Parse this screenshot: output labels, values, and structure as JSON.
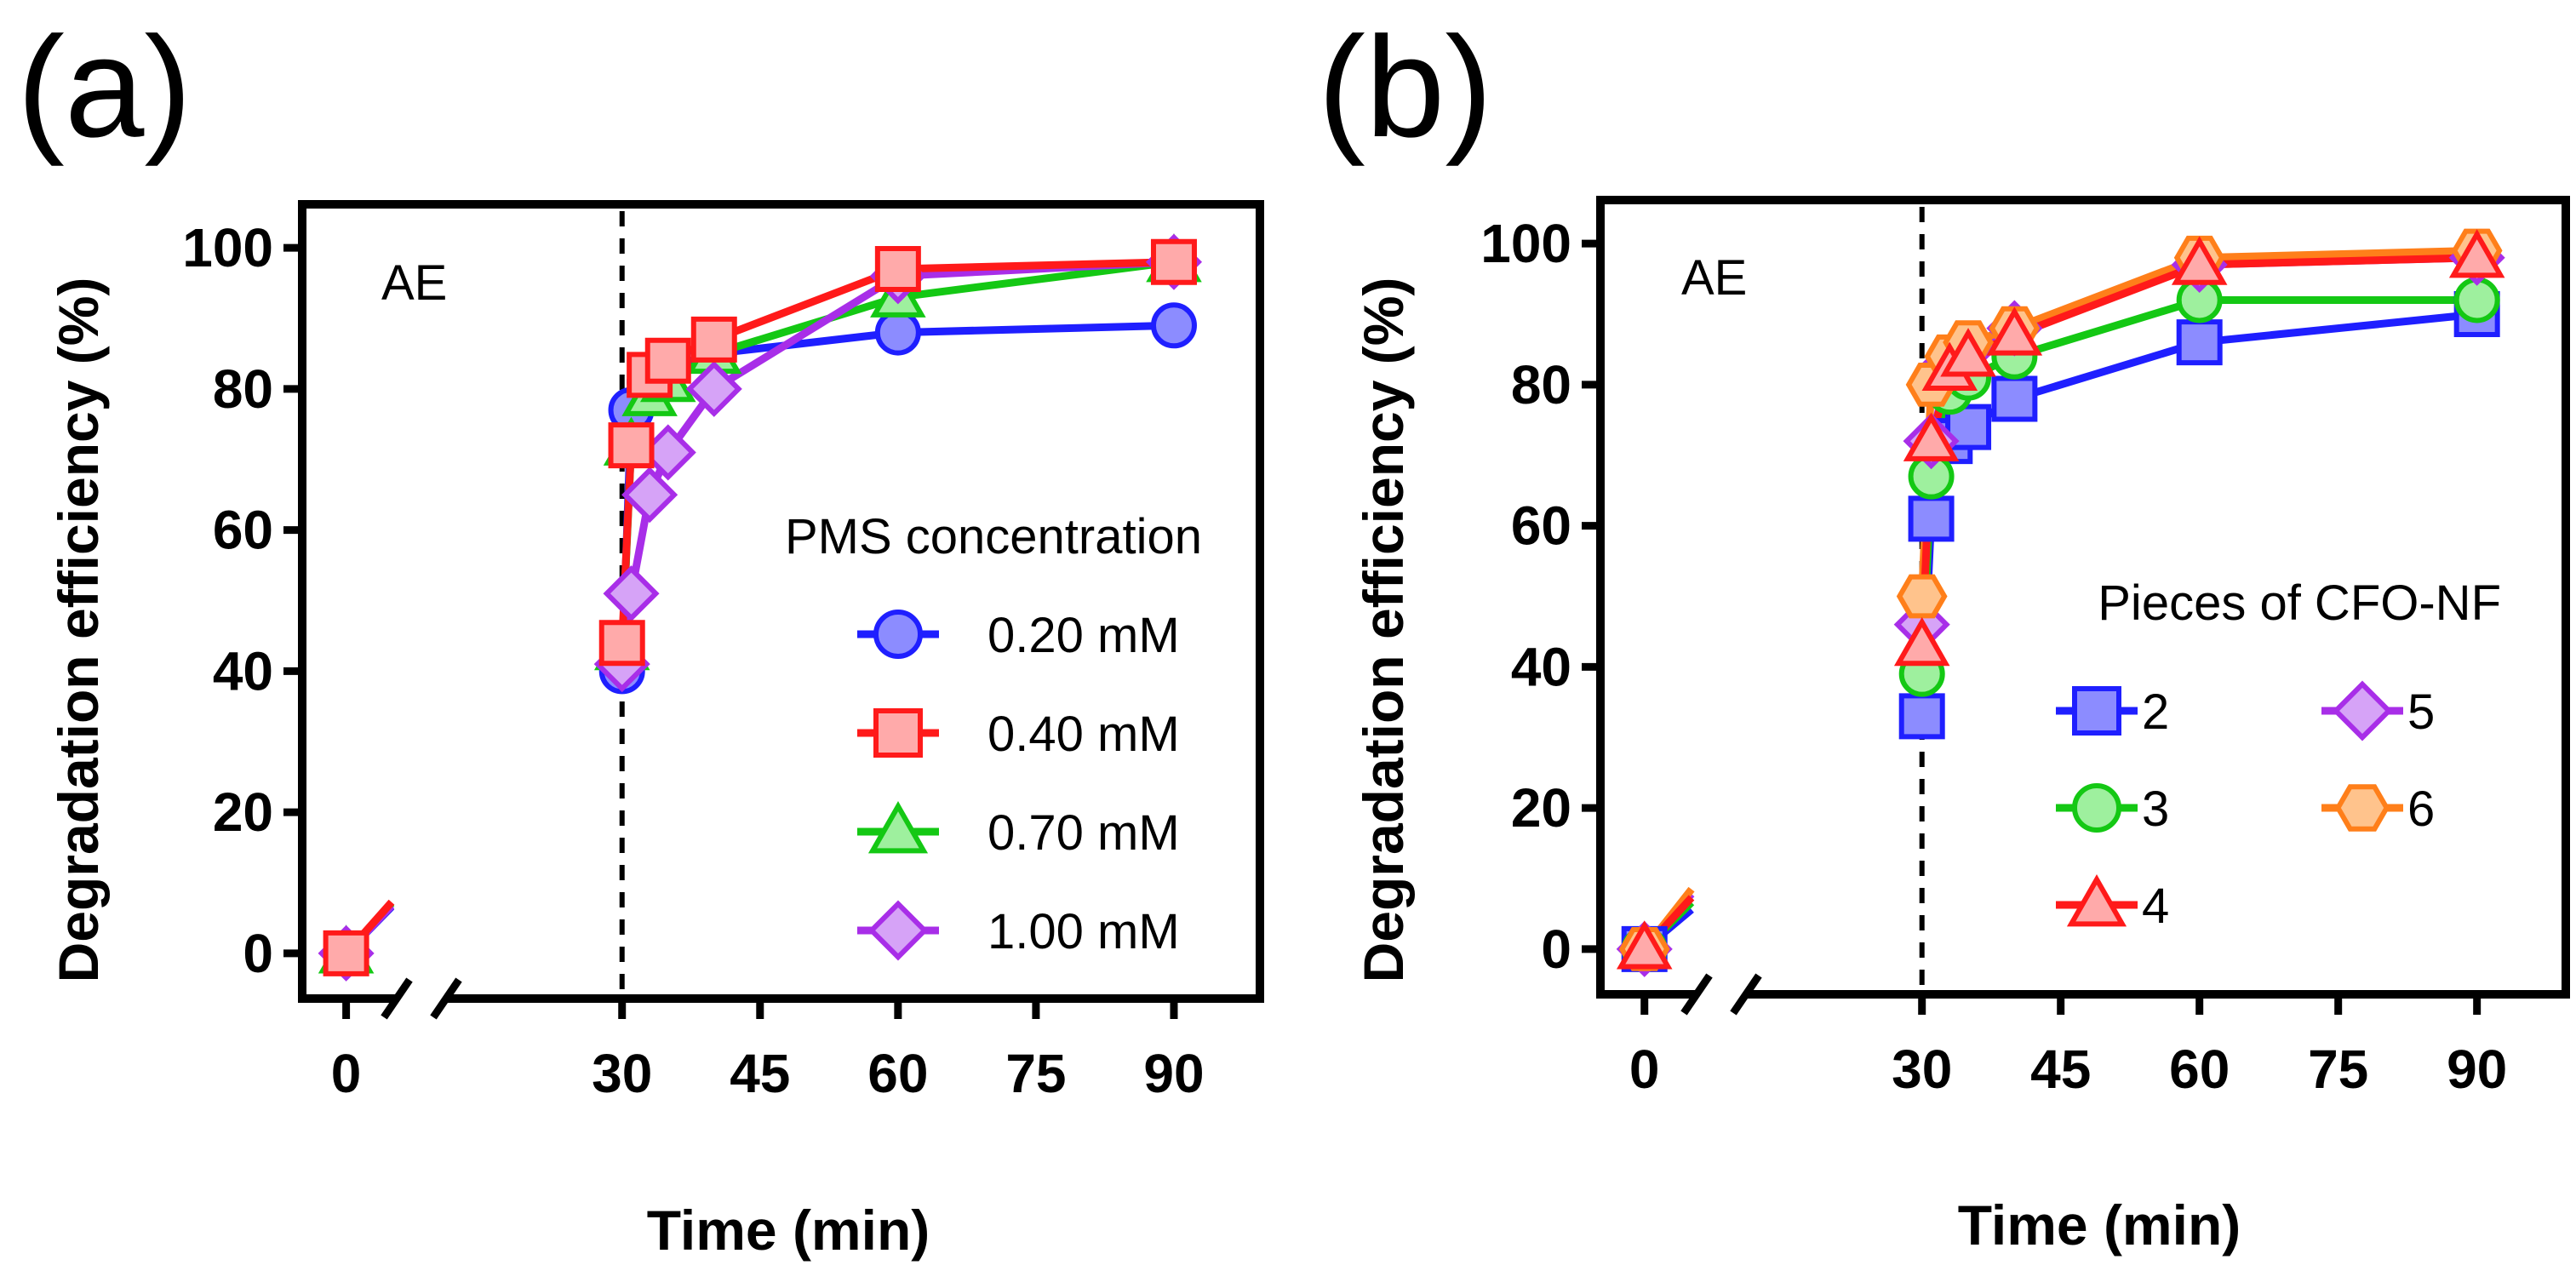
{
  "chart_data": [
    {
      "panel": "(a)",
      "type": "line",
      "xlabel": "Time (min)",
      "ylabel": "Degradation efficiency (%)",
      "xticks": [
        0,
        30,
        45,
        60,
        75,
        90
      ],
      "yticks": [
        0,
        20,
        40,
        60,
        80,
        100
      ],
      "xlim": [
        -2,
        95
      ],
      "ylim": [
        -4,
        104
      ],
      "x_break_between": [
        0,
        30
      ],
      "annotation": "AE",
      "annotation_line_x": 30,
      "legend_title": "PMS concentration",
      "series": [
        {
          "name": "0.20 mM",
          "color": "#1f1fff",
          "fill": "#8c8cff",
          "marker": "circle",
          "x": [
            0,
            30,
            31,
            33,
            35,
            40,
            60,
            90
          ],
          "y": [
            0,
            40,
            77,
            81,
            83,
            85,
            88,
            89
          ]
        },
        {
          "name": "0.70 mM",
          "color": "#14c814",
          "fill": "#9ef09e",
          "marker": "triangle",
          "x": [
            0,
            30,
            31,
            33,
            35,
            40,
            60,
            90
          ],
          "y": [
            0,
            43,
            72,
            79,
            81,
            85,
            93,
            98
          ]
        },
        {
          "name": "1.00 mM",
          "color": "#a82ee8",
          "fill": "#d6a3f7",
          "marker": "diamond",
          "x": [
            0,
            30,
            31,
            33,
            35,
            40,
            60,
            90
          ],
          "y": [
            0,
            41,
            51,
            65,
            71,
            80,
            96,
            98
          ]
        },
        {
          "name": "0.40 mM",
          "color": "#ff1a1a",
          "fill": "#ffaaaa",
          "marker": "square",
          "x": [
            0,
            30,
            31,
            33,
            35,
            40,
            60,
            90
          ],
          "y": [
            0,
            44,
            72,
            82,
            84,
            87,
            97,
            98
          ]
        }
      ],
      "legend_order": [
        "0.20 mM",
        "0.40 mM",
        "0.70 mM",
        "1.00 mM"
      ]
    },
    {
      "panel": "(b)",
      "type": "line",
      "xlabel": "Time (min)",
      "ylabel": "Degradation efficiency (%)",
      "xticks": [
        0,
        30,
        45,
        60,
        75,
        90
      ],
      "yticks": [
        0,
        20,
        40,
        60,
        80,
        100
      ],
      "xlim": [
        -2,
        95
      ],
      "ylim": [
        -4,
        104
      ],
      "x_break_between": [
        0,
        30
      ],
      "annotation": "AE",
      "annotation_line_x": 30,
      "legend_title": "Pieces of CFO-NF",
      "series": [
        {
          "name": "2",
          "color": "#1f1fff",
          "fill": "#8c8cff",
          "marker": "square",
          "x": [
            0,
            30,
            31,
            33,
            35,
            40,
            60,
            90
          ],
          "y": [
            0,
            33,
            61,
            72,
            74,
            78,
            86,
            90
          ]
        },
        {
          "name": "3",
          "color": "#14c814",
          "fill": "#9ef09e",
          "marker": "circle",
          "x": [
            0,
            30,
            31,
            33,
            35,
            40,
            60,
            90
          ],
          "y": [
            0,
            39,
            67,
            79,
            81,
            84,
            92,
            92
          ]
        },
        {
          "name": "5",
          "color": "#a82ee8",
          "fill": "#d6a3f7",
          "marker": "diamond",
          "x": [
            0,
            30,
            31,
            33,
            35,
            40,
            60,
            90
          ],
          "y": [
            0,
            46,
            72,
            83,
            85,
            88,
            97,
            98
          ]
        },
        {
          "name": "6",
          "color": "#ff7f1a",
          "fill": "#ffc38c",
          "marker": "hexagon",
          "x": [
            0,
            30,
            31,
            33,
            35,
            40,
            60,
            90
          ],
          "y": [
            0,
            50,
            80,
            84,
            86,
            88,
            98,
            99
          ]
        },
        {
          "name": "4",
          "color": "#ff1a1a",
          "fill": "#ffaaaa",
          "marker": "triangle",
          "x": [
            0,
            30,
            31,
            33,
            35,
            40,
            60,
            90
          ],
          "y": [
            0,
            43,
            72,
            82,
            84,
            87,
            97,
            98
          ]
        }
      ],
      "legend_order": [
        "2",
        "5",
        "3",
        "6",
        "4"
      ]
    }
  ]
}
